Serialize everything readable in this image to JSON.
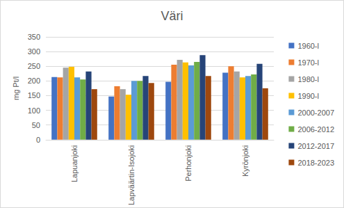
{
  "chart_data": {
    "type": "bar",
    "title": "Väri",
    "y_label": "mg Pt/l",
    "categories": [
      "Lapuanjoki",
      "Lapväärtin-Isojoki",
      "Perhonjoki",
      "Kyrönjoki"
    ],
    "series": [
      {
        "name": "1960-l",
        "color": "#4472c4",
        "values": [
          213,
          147,
          197,
          228
        ]
      },
      {
        "name": "1970-l",
        "color": "#ed7d31",
        "values": [
          212,
          182,
          255,
          250
        ]
      },
      {
        "name": "1980-l",
        "color": "#a5a5a5",
        "values": [
          245,
          172,
          272,
          232
        ]
      },
      {
        "name": "1990-l",
        "color": "#ffc000",
        "values": [
          248,
          153,
          263,
          212
        ]
      },
      {
        "name": "2000-2007",
        "color": "#5b9bd5",
        "values": [
          212,
          200,
          253,
          217
        ]
      },
      {
        "name": "2006-2012",
        "color": "#70ad47",
        "values": [
          205,
          200,
          265,
          222
        ]
      },
      {
        "name": "2012-2017",
        "color": "#264478",
        "values": [
          232,
          217,
          288,
          258
        ]
      },
      {
        "name": "2018-2023",
        "color": "#9e480e",
        "values": [
          172,
          193,
          217,
          175
        ]
      }
    ],
    "ylim": [
      0,
      350
    ],
    "yticks": [
      0,
      50,
      100,
      150,
      200,
      250,
      300,
      350
    ],
    "grid": true,
    "legend": "right"
  }
}
